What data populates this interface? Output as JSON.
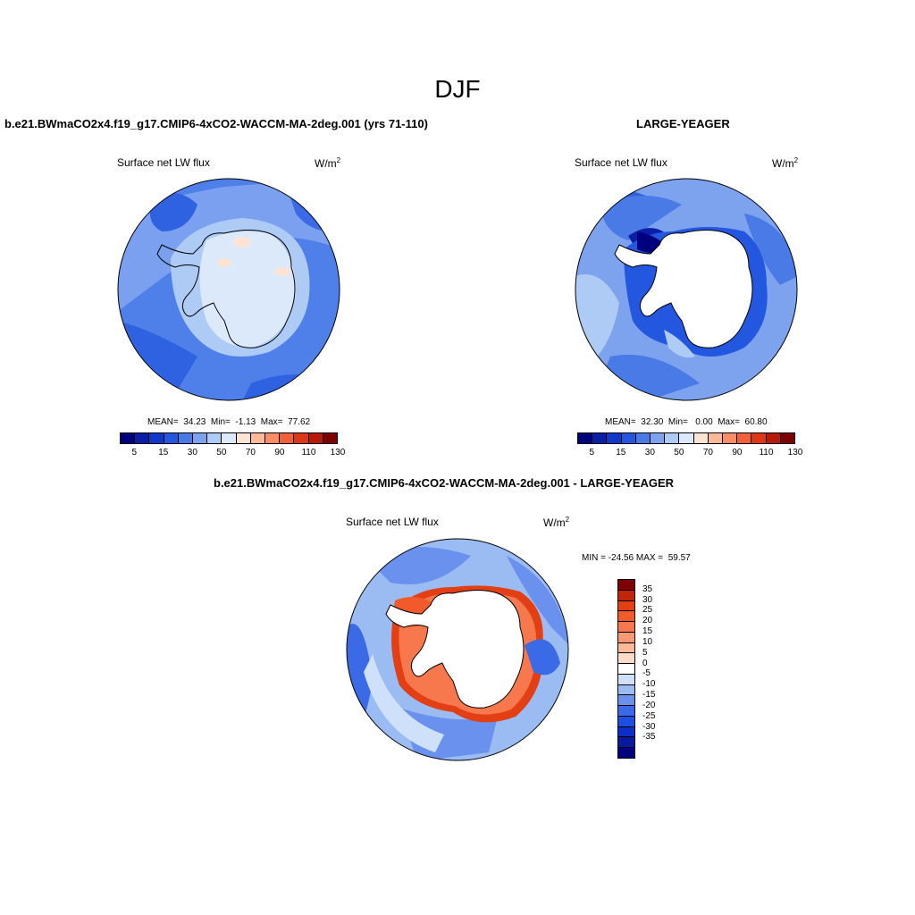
{
  "figure": {
    "season_title": "DJF"
  },
  "panels": [
    {
      "title": "b.e21.BWmaCO2x4.f19_g17.CMIP6-4xCO2-WACCM-MA-2deg.001 (yrs 71-110)",
      "variable": "Surface net LW flux",
      "units_base": "W/m",
      "units_exp": "2",
      "stats": {
        "mean_label": "MEAN=",
        "mean": "34.23",
        "min_label": "Min=",
        "min": "-1.13",
        "max_label": "Max=",
        "max": "77.62"
      },
      "ice_covered": true
    },
    {
      "title": "LARGE-YEAGER",
      "variable": "Surface net LW flux",
      "units_base": "W/m",
      "units_exp": "2",
      "stats": {
        "mean_label": "MEAN=",
        "mean": "32.30",
        "min_label": "Min=",
        "min": "0.00",
        "max_label": "Max=",
        "max": "60.80"
      },
      "ice_covered": false
    },
    {
      "title": "b.e21.BWmaCO2x4.f19_g17.CMIP6-4xCO2-WACCM-MA-2deg.001 - LARGE-YEAGER",
      "variable": "Surface net LW flux",
      "units_base": "W/m",
      "units_exp": "2",
      "minmax_text": "MIN = -24.56 MAX =  59.57",
      "ice_covered": false
    }
  ],
  "colorbar_abs": {
    "colors": [
      "#00007f",
      "#0b1fa6",
      "#1139c9",
      "#2357e0",
      "#4a7ae6",
      "#7da2ee",
      "#aecbf5",
      "#dbe9fb",
      "#fde3d3",
      "#fbb99a",
      "#f88d66",
      "#f0603a",
      "#dd3717",
      "#b81a0a",
      "#7f0000"
    ],
    "tick_labels": [
      "5",
      "15",
      "30",
      "50",
      "70",
      "90",
      "110",
      "130"
    ]
  },
  "colorbar_diff": {
    "colors": [
      "#00007f",
      "#0a1aa0",
      "#0e2fc6",
      "#1c4ee0",
      "#3a6ae6",
      "#6a91ed",
      "#9bbcf3",
      "#cfe0fa",
      "#ffffff",
      "#fddcc7",
      "#fbb998",
      "#f99872",
      "#f7784d",
      "#f25a2c",
      "#e23f14",
      "#c1250a",
      "#7f0000"
    ],
    "tick_labels": [
      "35",
      "30",
      "25",
      "20",
      "15",
      "10",
      "5",
      "0",
      "-5",
      "-10",
      "-15",
      "-20",
      "-25",
      "-30",
      "-35"
    ]
  }
}
